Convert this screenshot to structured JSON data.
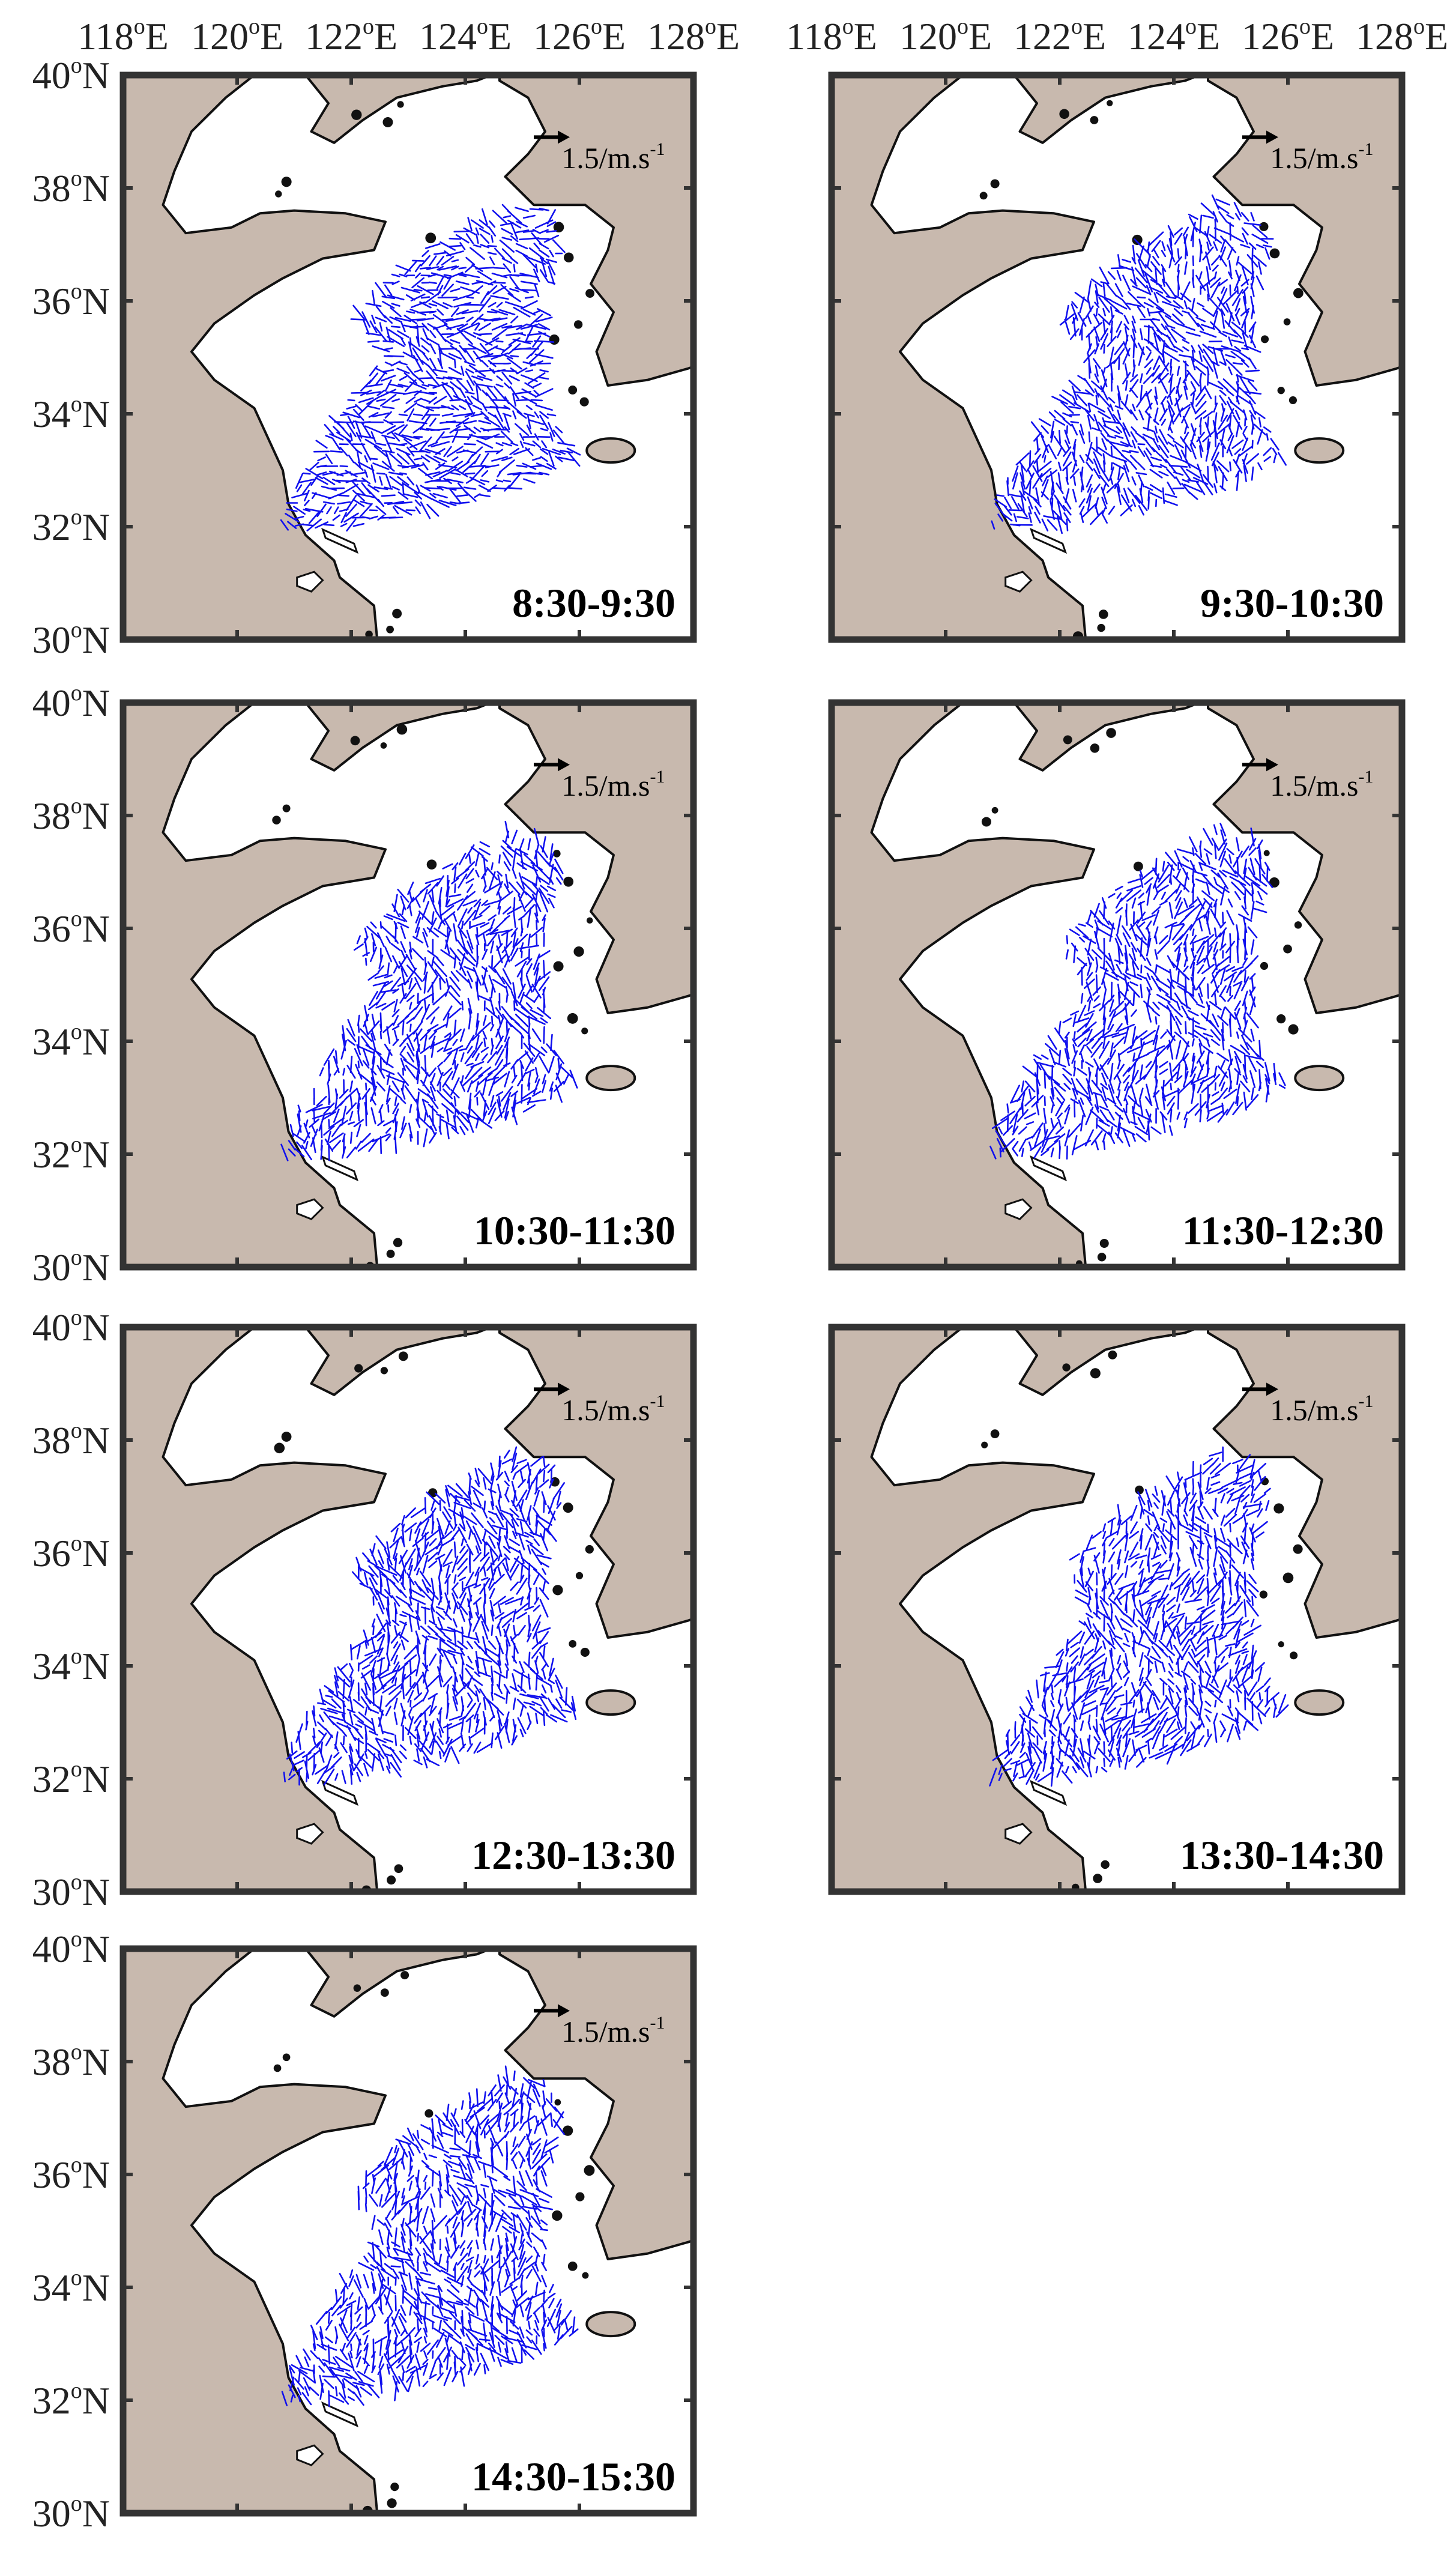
{
  "figure": {
    "lon_ticks": [
      "118",
      "120",
      "122",
      "124",
      "126",
      "128"
    ],
    "lon_suffix": "E",
    "lat_ticks": [
      "40",
      "38",
      "36",
      "34",
      "32",
      "30"
    ],
    "lat_suffix": "N",
    "degree_mark": "o",
    "lon_range": [
      118,
      128
    ],
    "lat_range": [
      30,
      40
    ],
    "scale_value": "1.5/m.s",
    "scale_exponent": "-1",
    "land_color": "#c8b9ae",
    "vector_color": "#1010ee",
    "frame_color": "#333333"
  },
  "panels": [
    {
      "time": "8:30-9:30"
    },
    {
      "time": "9:30-10:30"
    },
    {
      "time": "10:30-11:30"
    },
    {
      "time": "11:30-12:30"
    },
    {
      "time": "12:30-13:30"
    },
    {
      "time": "13:30-14:30"
    },
    {
      "time": "14:30-15:30"
    }
  ]
}
